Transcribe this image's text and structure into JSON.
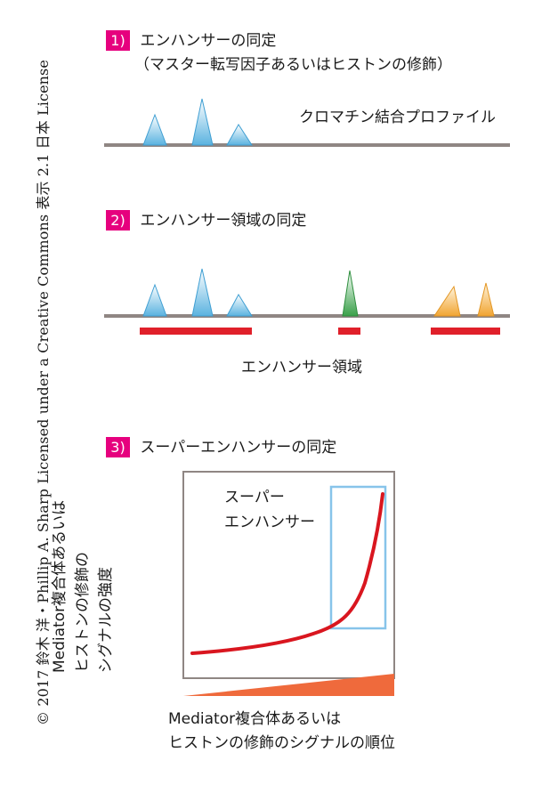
{
  "copyright": "© 2017 鈴木 洋・Phillip A. Sharp Licensed under a Creative Commons 表示 2.1 日本 License",
  "steps": [
    {
      "number": "1)",
      "title": "エンハンサーの同定",
      "subtitle": "（マスター転写因子あるいはヒストンの修飾）"
    },
    {
      "number": "2)",
      "title": "エンハンサー領域の同定"
    },
    {
      "number": "3)",
      "title": "スーパーエンハンサーの同定"
    }
  ],
  "panel1": {
    "profile_label": "クロマチン結合プロファイル"
  },
  "panel2": {
    "region_label": "エンハンサー領域"
  },
  "panel3": {
    "box_label_line1": "スーパー",
    "box_label_line2": "エンハンサー",
    "y_label_line1": "Mediator複合体あるいは",
    "y_label_line2": "ヒストンの修飾の",
    "y_label_line3": "シグナルの強度",
    "x_label_line1": "Mediator複合体あるいは",
    "x_label_line2": "ヒストンの修飾のシグナルの順位"
  },
  "colors": {
    "accent_number": "#e6007e",
    "track": "#8f8683",
    "peak_blue": "#5bb3e0",
    "peak_green": "#3aa14a",
    "peak_orange": "#f1a533",
    "region_red": "#e0202a",
    "curve_red": "#d9161f",
    "highlight_box": "#87c4ea",
    "rank_wedge": "#ef6a3c"
  }
}
